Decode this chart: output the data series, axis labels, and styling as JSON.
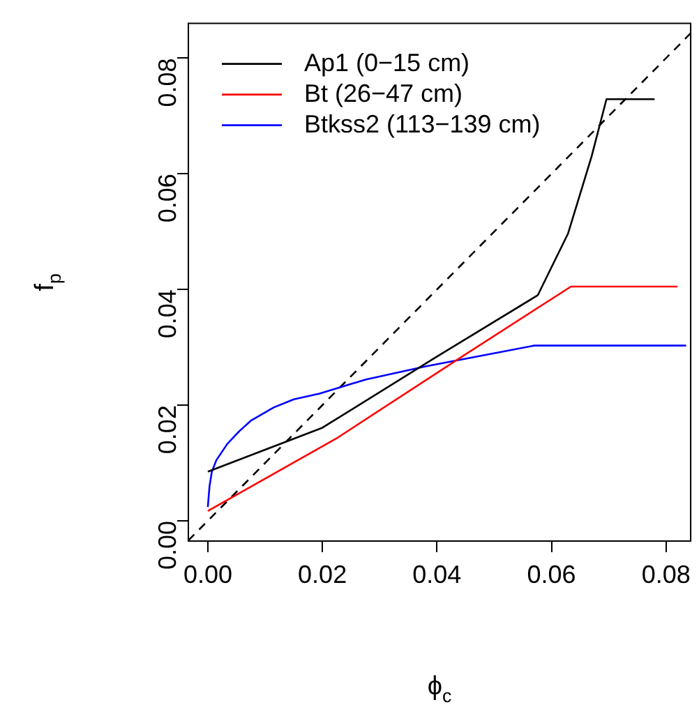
{
  "chart_data": {
    "type": "line",
    "xlabel": "ϕ$_{c}$",
    "ylabel": "f$_{p}$",
    "xlim": [
      -0.0034,
      0.0843
    ],
    "ylim": [
      -0.0035,
      0.086
    ],
    "xticks": [
      {
        "value": 0,
        "label": "0.00"
      },
      {
        "value": 0.02,
        "label": "0.02"
      },
      {
        "value": 0.04,
        "label": "0.04"
      },
      {
        "value": 0.06,
        "label": "0.06"
      },
      {
        "value": 0.08,
        "label": "0.08"
      }
    ],
    "yticks": [
      {
        "value": 0,
        "label": "0.00"
      },
      {
        "value": 0.02,
        "label": "0.02"
      },
      {
        "value": 0.04,
        "label": "0.04"
      },
      {
        "value": 0.06,
        "label": "0.06"
      },
      {
        "value": 0.08,
        "label": "0.08"
      }
    ],
    "grid": false,
    "legend": "top left",
    "marker": "none",
    "series": [
      {
        "name": "Ap1 (0−15 cm)",
        "color": "#000000",
        "x": [
          0,
          0.02,
          0.04,
          0.0576,
          0.0629,
          0.067,
          0.0696,
          0.078
        ],
        "values": [
          0.0085,
          0.0161,
          0.0284,
          0.039,
          0.0497,
          0.063,
          0.0729,
          0.0729
        ]
      },
      {
        "name": "Bt (26−47 cm)",
        "color": "#ff0000",
        "x": [
          0,
          0.0227,
          0.0436,
          0.0634,
          0.082
        ],
        "values": [
          0.0017,
          0.0144,
          0.0279,
          0.0405,
          0.0405
        ]
      },
      {
        "name": "Btkss2 (113−139 cm)",
        "color": "#0000ff",
        "x": [
          0,
          0.0003,
          0.0007,
          0.0015,
          0.0034,
          0.0055,
          0.0075,
          0.0115,
          0.015,
          0.0195,
          0.0275,
          0.038,
          0.057,
          0.0835
        ],
        "values": [
          0.0024,
          0.006,
          0.0085,
          0.0105,
          0.0133,
          0.0155,
          0.0173,
          0.0196,
          0.021,
          0.022,
          0.0244,
          0.0267,
          0.0303,
          0.0303
        ]
      },
      {
        "color": "#000000",
        "line_style": "dashed",
        "x": [
          -0.0034,
          0.0843
        ],
        "values": [
          -0.0034,
          0.0843
        ]
      }
    ]
  }
}
